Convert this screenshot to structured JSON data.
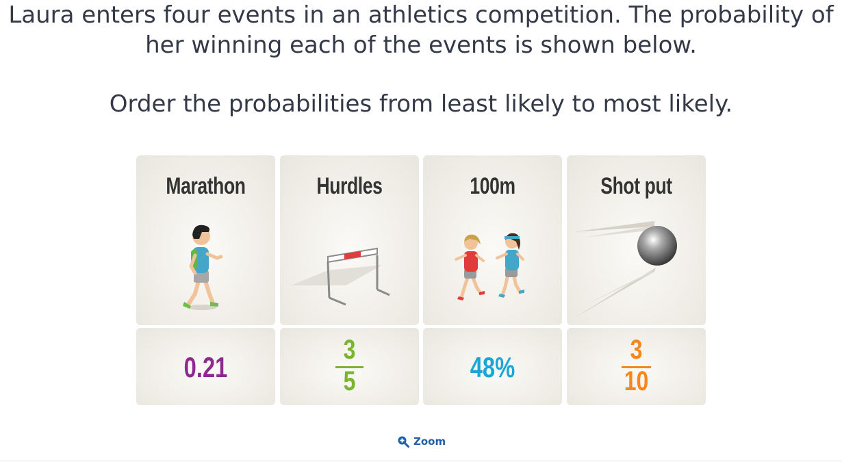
{
  "question": {
    "line1": "Laura enters four events in an athletics competition. The probability of",
    "line2": "her winning each of the events is shown below.",
    "line3": "Order the probabilities from least likely to most likely."
  },
  "cards": [
    {
      "title": "Marathon",
      "value": "0.21",
      "color": "#8d2a8d",
      "icon": "runner-icon"
    },
    {
      "title": "Hurdles",
      "numerator": "3",
      "denominator": "5",
      "color": "#7ab52e",
      "icon": "hurdle-icon"
    },
    {
      "title": "100m",
      "value": "48%",
      "color": "#1ba6d8",
      "icon": "sprinters-icon"
    },
    {
      "title": "Shot put",
      "numerator": "3",
      "denominator": "10",
      "color": "#f5871f",
      "icon": "shot-put-ball-icon"
    }
  ],
  "zoom": {
    "label": "Zoom",
    "icon": "zoom-in-icon",
    "color": "#1f5fa8"
  }
}
